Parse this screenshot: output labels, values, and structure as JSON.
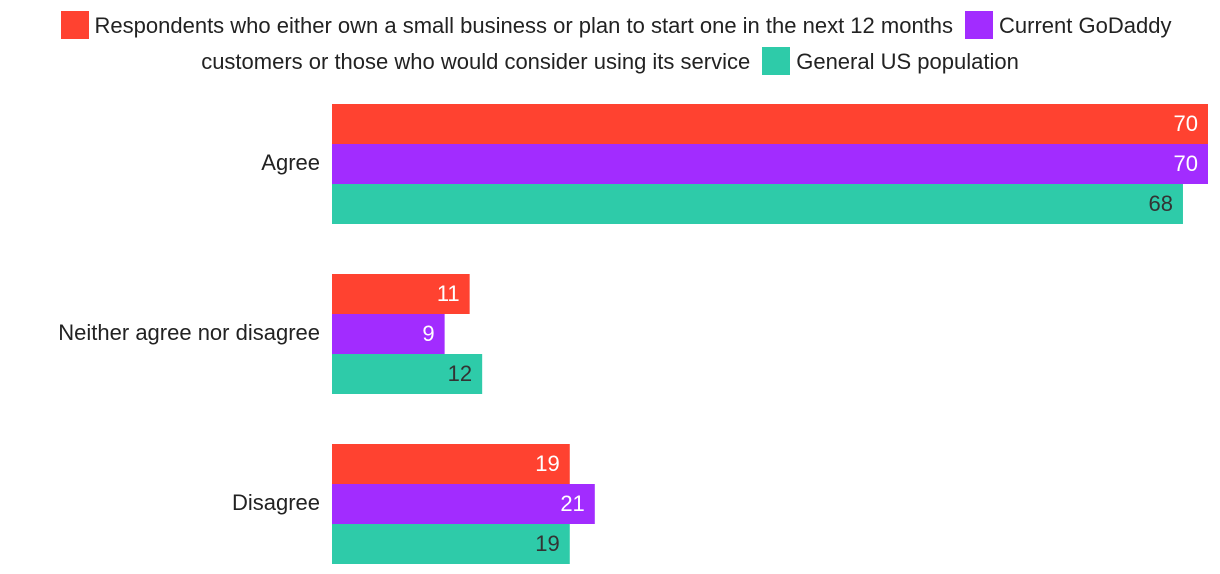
{
  "chart_data": {
    "type": "bar",
    "orientation": "horizontal",
    "categories": [
      "Agree",
      "Neither agree nor disagree",
      "Disagree"
    ],
    "series": [
      {
        "name": "Respondents who either own a small business or plan to start one in the next 12 months",
        "color": "#ff4230",
        "values": [
          70,
          11,
          19
        ]
      },
      {
        "name": "Current GoDaddy customers or those who would consider using its service",
        "color": "#a22cff",
        "values": [
          70,
          9,
          21
        ]
      },
      {
        "name": "General US population",
        "color": "#2ecba9",
        "values": [
          68,
          12,
          19
        ]
      }
    ],
    "xlim": [
      0,
      70
    ],
    "legend": "top"
  }
}
